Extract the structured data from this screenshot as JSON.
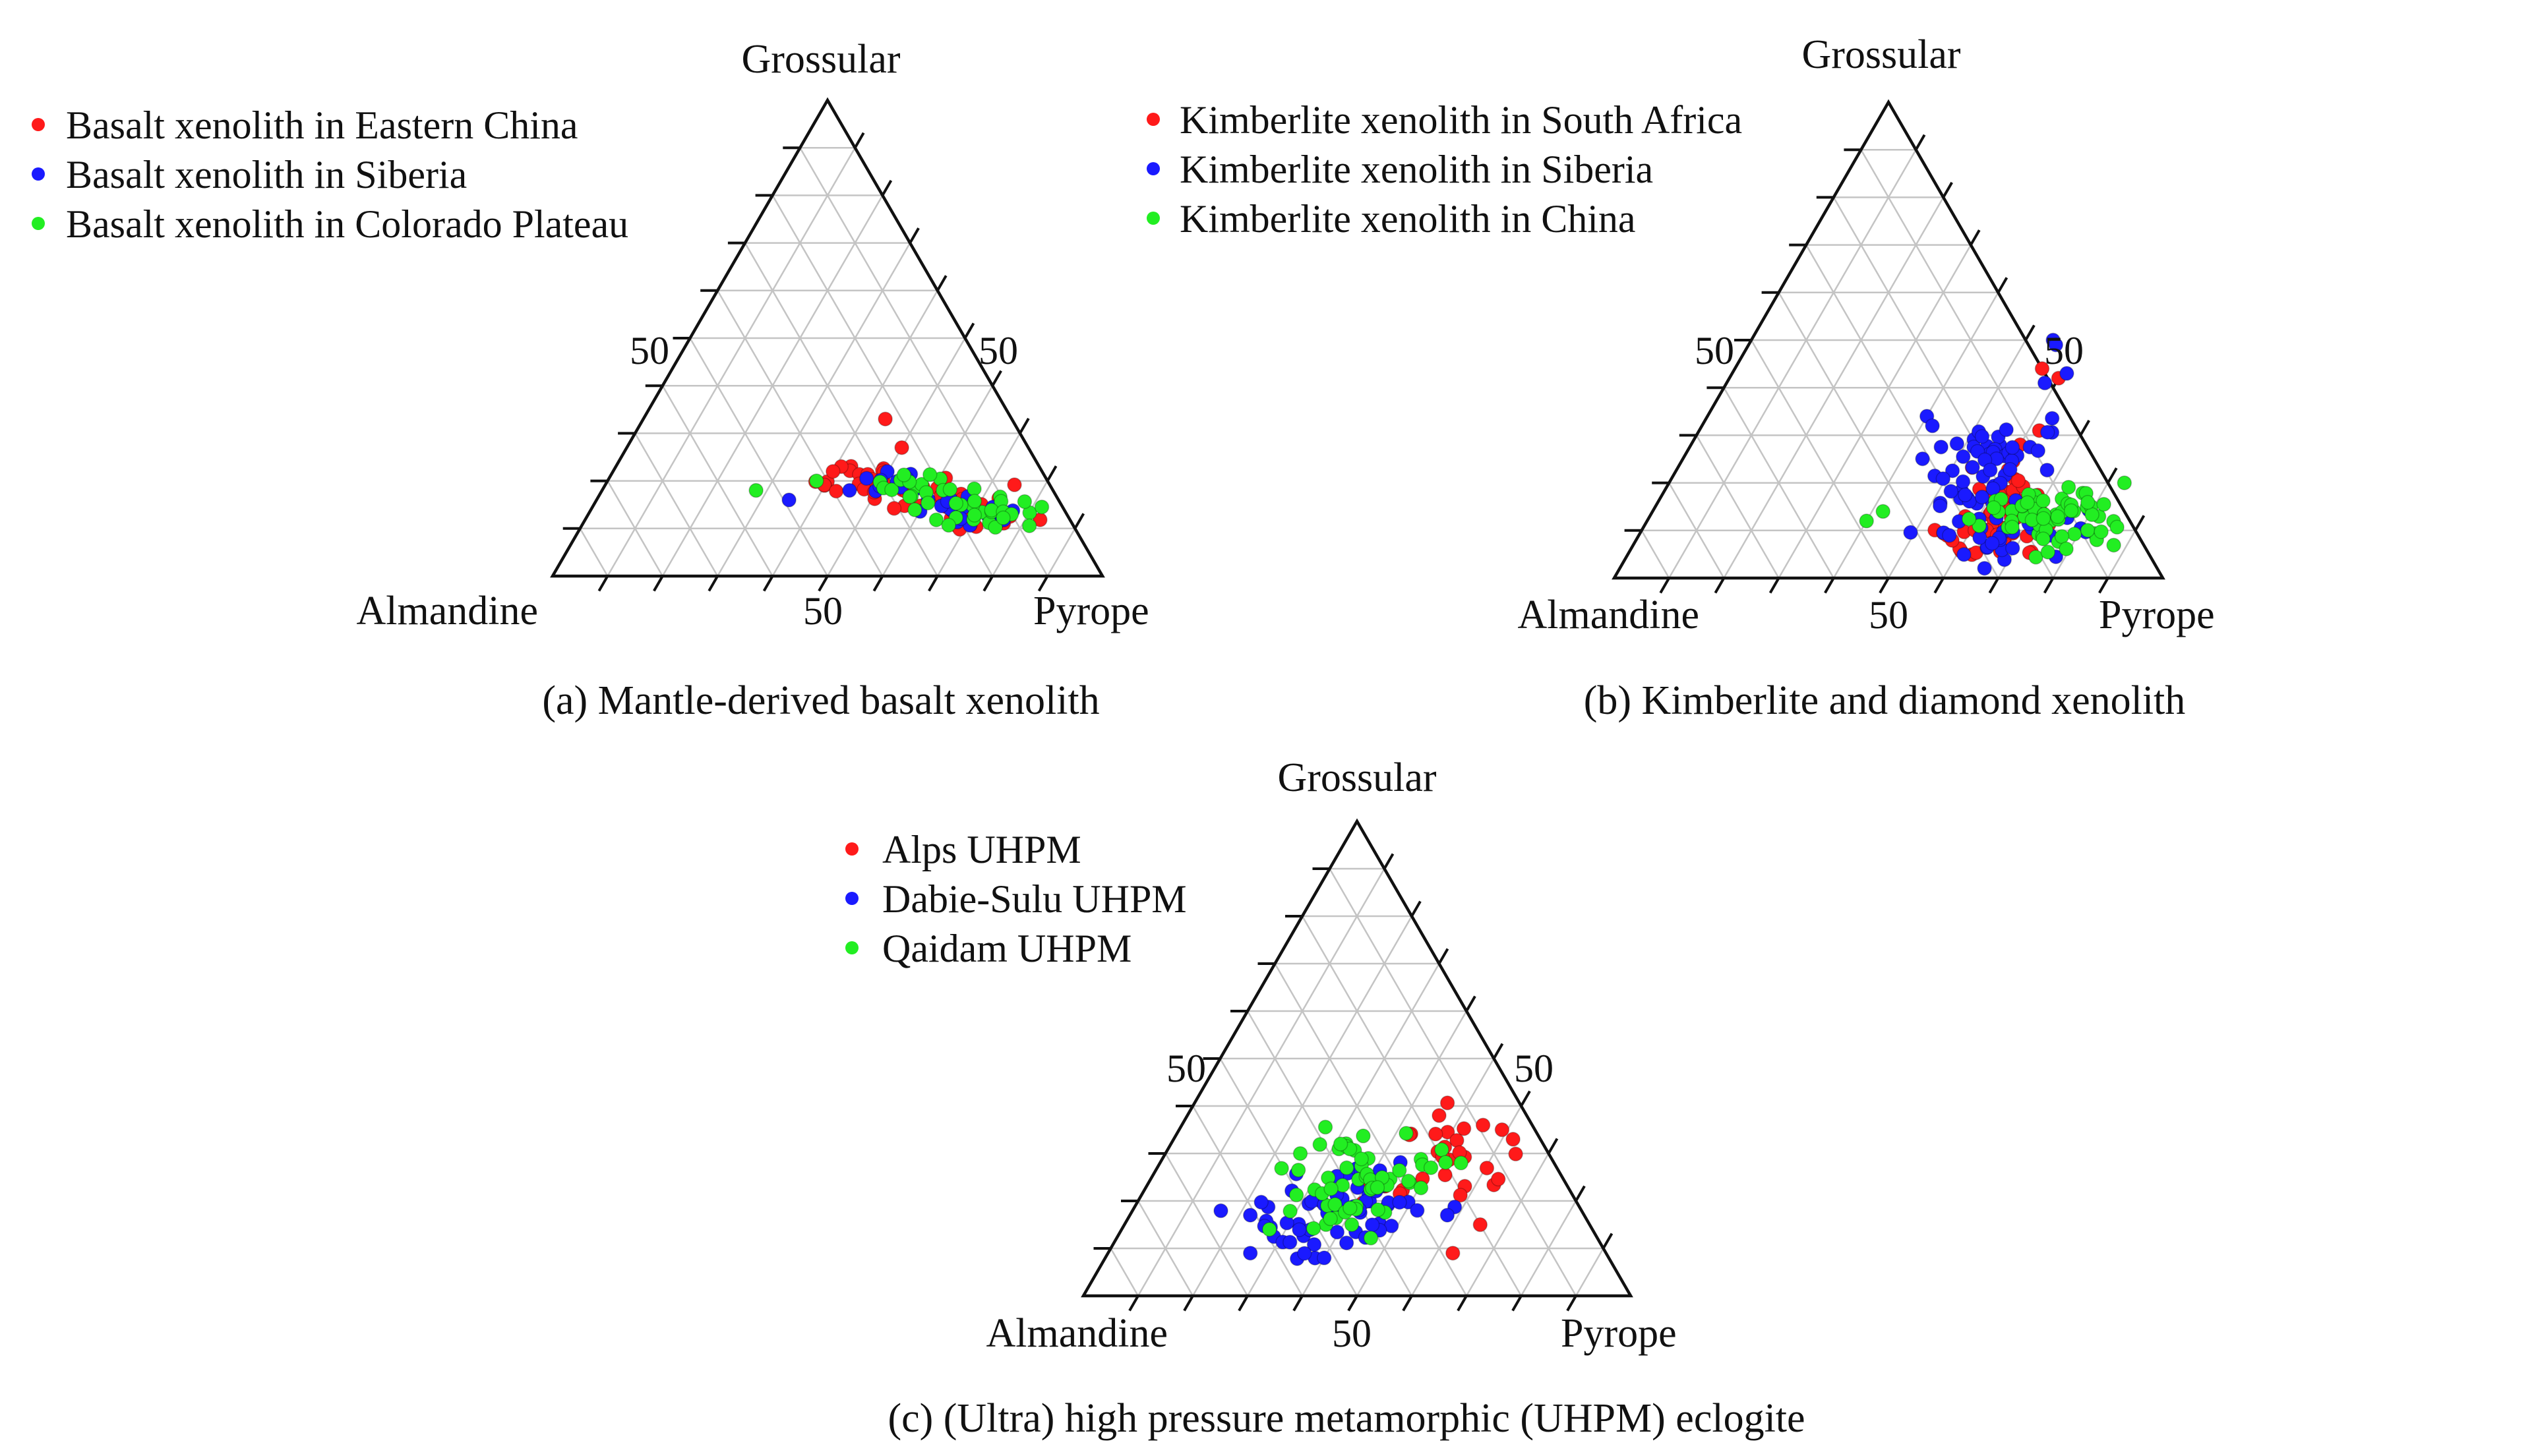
{
  "figure": {
    "background": "#ffffff"
  },
  "palette": {
    "red": "#ff1a1a",
    "blue": "#1a1aff",
    "green": "#22ee22",
    "grid": "#c4c4c4",
    "frame": "#111111"
  },
  "chart_data": [
    {
      "id": "a",
      "type": "scatter",
      "subtype": "ternary",
      "caption": "(a) Mantle-derived basalt xenolith",
      "axes": {
        "top": "Grossular",
        "left": "Almandine",
        "right": "Pyrope",
        "scale": [
          0,
          100
        ],
        "grid_step": 10,
        "grid": true
      },
      "tick_labels": {
        "left_edge": "50",
        "right_edge": "50",
        "bottom_edge": "50"
      },
      "legend_position": "top-left",
      "series": [
        {
          "name": "Basalt xenolith in Eastern China",
          "color": "#ff1a1a",
          "centers": [
            [
              44,
              21
            ],
            [
              54,
              19
            ],
            [
              64,
              16
            ],
            [
              72,
              12
            ]
          ],
          "spread": [
            4.5,
            1.6
          ],
          "count": 60,
          "seed": 11,
          "extra": [
            [
              44,
              33
            ],
            [
              50,
              27
            ],
            [
              41,
              23
            ],
            [
              40,
              22
            ]
          ]
        },
        {
          "name": "Basalt xenolith in Siberia",
          "color": "#1a1aff",
          "centers": [
            [
              55,
              19
            ],
            [
              65,
              16
            ],
            [
              72,
              13
            ]
          ],
          "spread": [
            4.5,
            1.5
          ],
          "count": 30,
          "seed": 12,
          "extra": [
            [
              35,
              16
            ],
            [
              45,
              18
            ]
          ]
        },
        {
          "name": "Basalt xenolith in Colorado Plateau",
          "color": "#22ee22",
          "centers": [
            [
              57,
              19
            ],
            [
              67,
              15
            ],
            [
              74,
              13
            ]
          ],
          "spread": [
            4.5,
            1.6
          ],
          "count": 40,
          "seed": 13,
          "extra": [
            [
              28,
              18
            ],
            [
              38,
              20
            ]
          ]
        }
      ]
    },
    {
      "id": "b",
      "type": "scatter",
      "subtype": "ternary",
      "caption": "(b) Kimberlite and diamond xenolith",
      "axes": {
        "top": "Grossular",
        "left": "Almandine",
        "right": "Pyrope",
        "scale": [
          0,
          100
        ],
        "grid_step": 10,
        "grid": true
      },
      "tick_labels": {
        "left_edge": "50",
        "right_edge": "50",
        "bottom_edge": "50"
      },
      "legend_position": "top-left",
      "series": [
        {
          "name": "Kimberlite xenolith in South Africa",
          "color": "#ff1a1a",
          "centers": [
            [
              60,
              10
            ],
            [
              66,
              13
            ],
            [
              70,
              9
            ],
            [
              62,
              18
            ]
          ],
          "spread": [
            4,
            3
          ],
          "count": 55,
          "seed": 21,
          "extra": [
            [
              56,
              44
            ],
            [
              60,
              42
            ],
            [
              62,
              31
            ],
            [
              60,
              28
            ]
          ]
        },
        {
          "name": "Kimberlite xenolith in Siberia",
          "color": "#1a1aff",
          "centers": [
            [
              52,
              27
            ],
            [
              58,
              26
            ],
            [
              62,
              12
            ],
            [
              70,
              10
            ],
            [
              56,
              18
            ]
          ],
          "spread": [
            4.5,
            3
          ],
          "count": 85,
          "seed": 22,
          "extra": [
            [
              55,
              50
            ],
            [
              56,
              49
            ],
            [
              40,
              34
            ],
            [
              42,
              32
            ],
            [
              58,
              41
            ],
            [
              61,
              43
            ]
          ]
        },
        {
          "name": "Kimberlite xenolith in China",
          "color": "#22ee22",
          "centers": [
            [
              72,
              13
            ],
            [
              80,
              10
            ],
            [
              68,
              15
            ]
          ],
          "spread": [
            5,
            2.2
          ],
          "count": 65,
          "seed": 23,
          "extra": [
            [
              42,
              14
            ],
            [
              40,
              12
            ],
            [
              83,
              20
            ]
          ]
        }
      ]
    },
    {
      "id": "c",
      "type": "scatter",
      "subtype": "ternary",
      "caption": "(c) (Ultra) high pressure metamorphic (UHPM) eclogite",
      "axes": {
        "top": "Grossular",
        "left": "Almandine",
        "right": "Pyrope",
        "scale": [
          0,
          100
        ],
        "grid_step": 10,
        "grid": true
      },
      "tick_labels": {
        "left_edge": "50",
        "right_edge": "50",
        "bottom_edge": "50"
      },
      "legend_position": "top-left",
      "series": [
        {
          "name": "Alps UHPM",
          "color": "#ff1a1a",
          "centers": [
            [
              48,
              32
            ],
            [
              56,
              28
            ],
            [
              44,
              25
            ]
          ],
          "spread": [
            5,
            4
          ],
          "count": 30,
          "seed": 31,
          "extra": [
            [
              59,
              35
            ],
            [
              62,
              33
            ],
            [
              63,
              9
            ],
            [
              65,
              15
            ],
            [
              46,
              38
            ]
          ]
        },
        {
          "name": "Dabie-Sulu UHPM",
          "color": "#1a1aff",
          "centers": [
            [
              30,
              18
            ],
            [
              38,
              24
            ],
            [
              45,
              20
            ],
            [
              36,
              12
            ]
          ],
          "spread": [
            5,
            4
          ],
          "count": 60,
          "seed": 32,
          "extra": [
            [
              22,
              17
            ],
            [
              26,
              9
            ],
            [
              40,
              8
            ],
            [
              52,
              18
            ],
            [
              58,
              17
            ]
          ]
        },
        {
          "name": "Qaidam UHPM",
          "color": "#22ee22",
          "centers": [
            [
              33,
              28
            ],
            [
              38,
              22
            ],
            [
              45,
              24
            ],
            [
              36,
              19
            ]
          ],
          "spread": [
            4.5,
            4
          ],
          "count": 55,
          "seed": 33,
          "extra": [
            [
              27,
              14
            ],
            [
              50,
              27
            ],
            [
              55,
              28
            ],
            [
              31,
              32
            ]
          ]
        }
      ]
    }
  ]
}
